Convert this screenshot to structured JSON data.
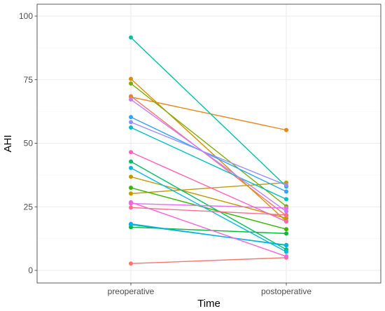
{
  "chart_data": {
    "type": "line",
    "title": "",
    "xlabel": "Time",
    "ylabel": "AHI",
    "categories": [
      "preoperative",
      "postoperative"
    ],
    "ylim": [
      0,
      100
    ],
    "yticks": [
      0,
      25,
      50,
      75,
      100
    ],
    "grid": true,
    "legend": "none",
    "theme": "ggplot2 theme_bw",
    "series": [
      {
        "color": "#F8766D",
        "values": [
          2.7,
          5.0
        ]
      },
      {
        "color": "#F8766D",
        "values": [
          68.5,
          21.5
        ]
      },
      {
        "color": "#E7861B",
        "values": [
          68.2,
          55.2
        ]
      },
      {
        "color": "#D89000",
        "values": [
          75.3,
          19.3
        ]
      },
      {
        "color": "#C09B00",
        "values": [
          36.8,
          20.5
        ]
      },
      {
        "color": "#C09B00",
        "values": [
          30.2,
          34.5
        ]
      },
      {
        "color": "#7CAE00",
        "values": [
          73.5,
          25.2
        ]
      },
      {
        "color": "#39B600",
        "values": [
          32.5,
          16.2
        ]
      },
      {
        "color": "#00BA38",
        "values": [
          17.0,
          14.5
        ]
      },
      {
        "color": "#00BE67",
        "values": [
          42.8,
          8.2
        ]
      },
      {
        "color": "#00BF7D",
        "values": [
          18.0,
          10.0
        ]
      },
      {
        "color": "#00C1A3",
        "values": [
          91.6,
          33.0
        ]
      },
      {
        "color": "#00BFC4",
        "values": [
          56.2,
          28.0
        ]
      },
      {
        "color": "#00BAE0",
        "values": [
          40.3,
          7.3
        ]
      },
      {
        "color": "#00B0F6",
        "values": [
          18.3,
          9.8
        ]
      },
      {
        "color": "#35A2FF",
        "values": [
          60.3,
          31.0
        ]
      },
      {
        "color": "#9590FF",
        "values": [
          58.3,
          33.5
        ]
      },
      {
        "color": "#C77CFF",
        "values": [
          67.2,
          23.2
        ]
      },
      {
        "color": "#E76BF3",
        "values": [
          26.3,
          24.5
        ]
      },
      {
        "color": "#FA62DB",
        "values": [
          26.8,
          5.5
        ]
      },
      {
        "color": "#FF62BC",
        "values": [
          46.5,
          19.2
        ]
      },
      {
        "color": "#FF6C91",
        "values": [
          24.7,
          21.8
        ]
      }
    ]
  }
}
